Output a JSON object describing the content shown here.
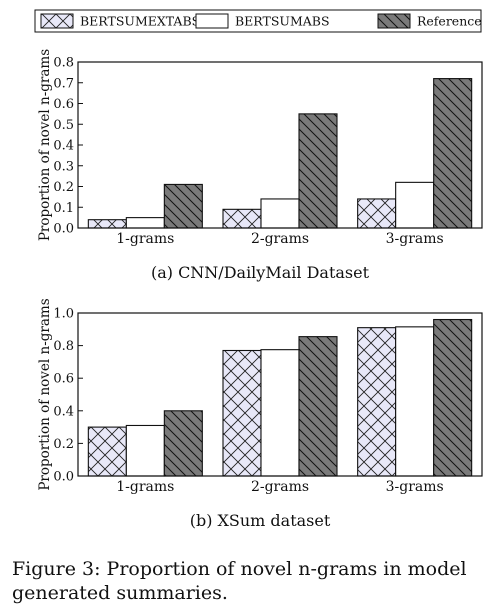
{
  "legend": [
    "BERTSUMEXTABS",
    "BERTSUMABS",
    "Reference"
  ],
  "colors": {
    "extabs_fill": "#e8e8f8",
    "abs_fill": "#ffffff",
    "ref_fill": "#7a7a7a",
    "stroke": "#111111"
  },
  "chart_data": [
    {
      "type": "bar",
      "title": "(a) CNN/DailyMail Dataset",
      "ylabel": "Proportion of novel n-grams",
      "categories": [
        "1-grams",
        "2-grams",
        "3-grams"
      ],
      "ylim": [
        0,
        0.8
      ],
      "yticks": [
        "0.0",
        "0.1",
        "0.2",
        "0.3",
        "0.4",
        "0.5",
        "0.6",
        "0.7",
        "0.8"
      ],
      "series": [
        {
          "name": "BERTSUMEXTABS",
          "values": [
            0.04,
            0.09,
            0.14
          ]
        },
        {
          "name": "BERTSUMABS",
          "values": [
            0.05,
            0.14,
            0.22
          ]
        },
        {
          "name": "Reference",
          "values": [
            0.21,
            0.55,
            0.72
          ]
        }
      ]
    },
    {
      "type": "bar",
      "title": "(b) XSum dataset",
      "ylabel": "Proportion of novel n-grams",
      "categories": [
        "1-grams",
        "2-grams",
        "3-grams"
      ],
      "ylim": [
        0,
        1.0
      ],
      "yticks": [
        "0.0",
        "0.2",
        "0.4",
        "0.6",
        "0.8",
        "1.0"
      ],
      "series": [
        {
          "name": "BERTSUMEXTABS",
          "values": [
            0.3,
            0.77,
            0.91
          ]
        },
        {
          "name": "BERTSUMABS",
          "values": [
            0.31,
            0.775,
            0.915
          ]
        },
        {
          "name": "Reference",
          "values": [
            0.4,
            0.855,
            0.96
          ]
        }
      ]
    }
  ],
  "figure_caption": "Figure 3: Proportion of novel n-grams in model generated summaries."
}
